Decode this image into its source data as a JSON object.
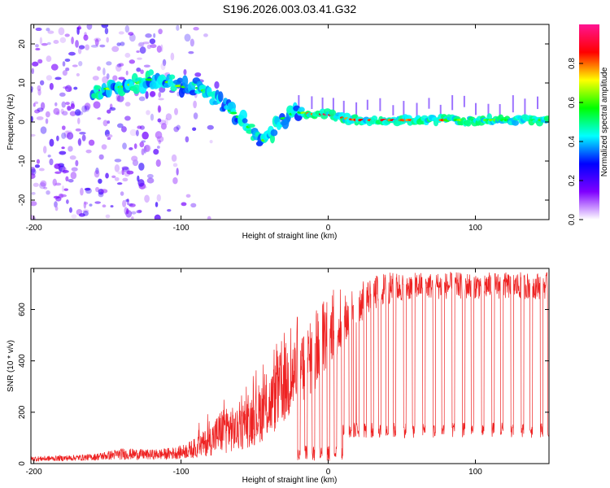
{
  "title": "S196.2026.003.03.41.G32",
  "chart_data": [
    {
      "type": "heatmap",
      "xlabel": "Height of straight line (km)",
      "ylabel": "Frequency (Hz)",
      "xlim": [
        -202,
        150
      ],
      "ylim": [
        -25,
        25
      ],
      "xticks": [
        -200,
        -100,
        0,
        100
      ],
      "xtick_labels": [
        "-200",
        "-100",
        "0",
        "100"
      ],
      "yticks": [
        20,
        10,
        0,
        -10,
        -20
      ],
      "ytick_labels": [
        "20",
        "10",
        "0",
        "-10",
        "-20"
      ],
      "ridge": {
        "x": [
          -160,
          -150,
          -140,
          -130,
          -120,
          -110,
          -100,
          -90,
          -80,
          -70,
          -60,
          -50,
          -45,
          -40,
          -35,
          -30,
          -25,
          -20,
          -10,
          0,
          10,
          20,
          30,
          50,
          100,
          150
        ],
        "y": [
          8,
          8.5,
          9,
          10,
          11,
          10.5,
          9,
          9,
          7,
          4,
          1,
          -3,
          -5,
          -4,
          -1,
          1,
          2,
          2.5,
          2,
          2,
          1,
          0.5,
          0.5,
          0.5,
          0.5,
          0.5
        ]
      },
      "colorbar": {
        "label": "Normalized spectral amplitude",
        "range": [
          0,
          1
        ],
        "ticks": [
          0.0,
          0.2,
          0.4,
          0.6,
          0.8
        ],
        "tick_labels": [
          "0.0",
          "0.2",
          "0.4",
          "0.6",
          "0.8"
        ],
        "colors": [
          "#ffffff",
          "#7f00ff",
          "#0000ff",
          "#00ffff",
          "#00ff00",
          "#ffff00",
          "#ff0000",
          "#ff1493"
        ]
      }
    },
    {
      "type": "line",
      "xlabel": "Height of straight line (km)",
      "ylabel": "SNR (10 * v/v)",
      "xlim": [
        -202,
        150
      ],
      "ylim": [
        0,
        760
      ],
      "xticks": [
        -200,
        -100,
        0,
        100
      ],
      "xtick_labels": [
        "-200",
        "-100",
        "0",
        "100"
      ],
      "yticks": [
        0,
        200,
        400,
        600
      ],
      "ytick_labels": [
        "0",
        "200",
        "400",
        "600"
      ],
      "color": "#ee2222",
      "envelope": {
        "x": [
          -202,
          -180,
          -160,
          -140,
          -120,
          -110,
          -100,
          -90,
          -80,
          -70,
          -60,
          -50,
          -40,
          -30,
          -20,
          -10,
          0,
          10,
          20,
          30,
          40,
          60,
          100,
          150
        ],
        "low": [
          8,
          10,
          12,
          15,
          15,
          15,
          18,
          22,
          30,
          40,
          50,
          70,
          100,
          150,
          200,
          280,
          380,
          440,
          540,
          590,
          620,
          640,
          640,
          640
        ],
        "high": [
          28,
          32,
          38,
          60,
          55,
          60,
          70,
          100,
          150,
          240,
          200,
          300,
          350,
          470,
          520,
          560,
          620,
          640,
          700,
          730,
          745,
          745,
          745,
          745
        ]
      },
      "dropouts_x": [
        -20,
        -15,
        -10,
        -5,
        0,
        5,
        10,
        15,
        18,
        20,
        25,
        30,
        35,
        40,
        45,
        52,
        58,
        65,
        72,
        78,
        85,
        92,
        98,
        105,
        112,
        118,
        125,
        132,
        138,
        145,
        150
      ]
    }
  ]
}
